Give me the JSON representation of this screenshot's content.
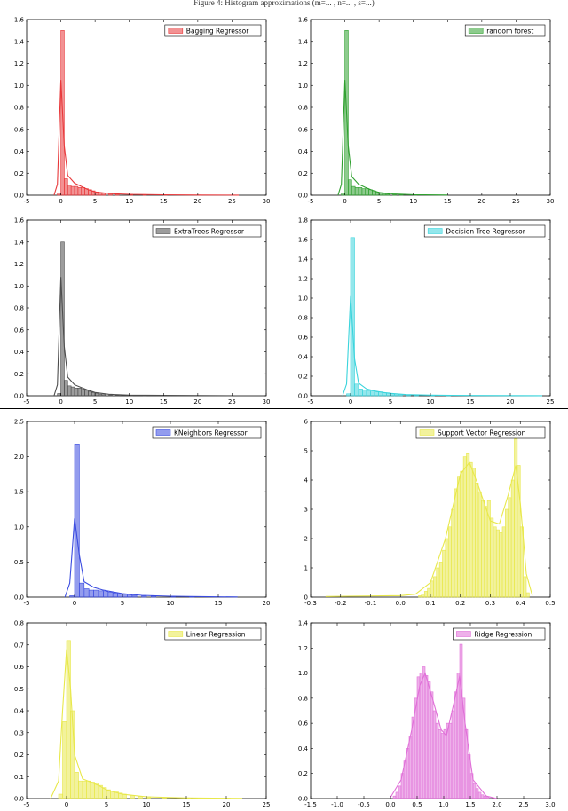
{
  "header": {
    "text": "Figure 4: Histogram approximations (m=... , n=... , s=...)"
  },
  "colors": {
    "red": "#e8383a",
    "green": "#2fa02f",
    "gray": "#4d4d4d",
    "cyan": "#3ad4dc",
    "blue": "#3a4be0",
    "yellow": "#e8e84a",
    "pink": "#e070d8"
  },
  "chart_data": [
    {
      "type": "bar",
      "legend": "Bagging Regressor",
      "color": "#e8383a",
      "xlim": [
        -5,
        30
      ],
      "ylim": [
        0,
        1.6
      ],
      "xticks": [
        -5,
        0,
        5,
        10,
        15,
        20,
        25,
        30
      ],
      "yticks": [
        0.0,
        0.2,
        0.4,
        0.6,
        0.8,
        1.0,
        1.2,
        1.4,
        1.6
      ],
      "bin_width": 0.5,
      "x": [
        -0.5,
        0.0,
        0.5,
        1.0,
        1.5,
        2.0,
        2.5,
        3.0,
        3.5,
        4.0,
        4.5,
        5.0,
        5.5,
        6.0,
        7.0,
        8.0,
        10.0,
        12.0,
        15.0,
        20.0,
        25.0
      ],
      "values": [
        0.02,
        1.5,
        0.15,
        0.09,
        0.08,
        0.08,
        0.07,
        0.07,
        0.06,
        0.05,
        0.04,
        0.03,
        0.02,
        0.02,
        0.015,
        0.01,
        0.008,
        0.006,
        0.004,
        0.002,
        0.002
      ],
      "kde": [
        [
          -1,
          0
        ],
        [
          -0.5,
          0.1
        ],
        [
          0,
          1.05
        ],
        [
          0.5,
          0.45
        ],
        [
          1,
          0.18
        ],
        [
          2,
          0.11
        ],
        [
          3,
          0.08
        ],
        [
          4,
          0.05
        ],
        [
          5,
          0.03
        ],
        [
          7,
          0.015
        ],
        [
          10,
          0.008
        ],
        [
          15,
          0.004
        ],
        [
          20,
          0.002
        ],
        [
          26,
          0.001
        ]
      ]
    },
    {
      "type": "bar",
      "legend": "random forest",
      "color": "#2fa02f",
      "xlim": [
        -5,
        30
      ],
      "ylim": [
        0,
        1.6
      ],
      "xticks": [
        -5,
        0,
        5,
        10,
        15,
        20,
        25,
        30
      ],
      "yticks": [
        0.0,
        0.2,
        0.4,
        0.6,
        0.8,
        1.0,
        1.2,
        1.4,
        1.6
      ],
      "bin_width": 0.5,
      "x": [
        -0.5,
        0.0,
        0.5,
        1.0,
        1.5,
        2.0,
        2.5,
        3.0,
        3.5,
        4.0,
        4.5,
        5.0,
        5.5,
        6.0,
        7.0,
        8.0,
        10.0
      ],
      "values": [
        0.02,
        1.5,
        0.14,
        0.08,
        0.07,
        0.07,
        0.06,
        0.06,
        0.05,
        0.04,
        0.03,
        0.02,
        0.015,
        0.01,
        0.008,
        0.006,
        0.004
      ],
      "kde": [
        [
          -1,
          0
        ],
        [
          -0.5,
          0.1
        ],
        [
          0,
          1.05
        ],
        [
          0.5,
          0.45
        ],
        [
          1,
          0.17
        ],
        [
          2,
          0.1
        ],
        [
          3,
          0.07
        ],
        [
          4,
          0.045
        ],
        [
          5,
          0.025
        ],
        [
          7,
          0.012
        ],
        [
          10,
          0.005
        ],
        [
          15,
          0.002
        ]
      ]
    },
    {
      "type": "bar",
      "legend": "ExtraTrees Regressor",
      "color": "#4d4d4d",
      "xlim": [
        -5,
        30
      ],
      "ylim": [
        0,
        1.6
      ],
      "xticks": [
        -5,
        0,
        5,
        10,
        15,
        20,
        25,
        30
      ],
      "yticks": [
        0.0,
        0.2,
        0.4,
        0.6,
        0.8,
        1.0,
        1.2,
        1.4,
        1.6
      ],
      "bin_width": 0.5,
      "x": [
        -0.5,
        0.0,
        0.5,
        1.0,
        1.5,
        2.0,
        2.5,
        3.0,
        3.5,
        4.0,
        4.5,
        5.0,
        5.5,
        6.0,
        7.0,
        8.0,
        10.0,
        12.0
      ],
      "values": [
        0.02,
        1.4,
        0.14,
        0.09,
        0.08,
        0.07,
        0.07,
        0.06,
        0.05,
        0.04,
        0.03,
        0.02,
        0.015,
        0.01,
        0.008,
        0.006,
        0.004,
        0.003
      ],
      "kde": [
        [
          -1,
          0
        ],
        [
          -0.5,
          0.1
        ],
        [
          0,
          1.08
        ],
        [
          0.5,
          0.45
        ],
        [
          1,
          0.17
        ],
        [
          2,
          0.1
        ],
        [
          3,
          0.075
        ],
        [
          4,
          0.05
        ],
        [
          5,
          0.03
        ],
        [
          7,
          0.014
        ],
        [
          10,
          0.006
        ],
        [
          15,
          0.003
        ],
        [
          25,
          0.001
        ]
      ]
    },
    {
      "type": "bar",
      "legend": "Decision Tree Regressor",
      "color": "#3ad4dc",
      "xlim": [
        -5,
        25
      ],
      "ylim": [
        0,
        1.8
      ],
      "xticks": [
        -5,
        0,
        5,
        10,
        15,
        20,
        25
      ],
      "yticks": [
        0.0,
        0.2,
        0.4,
        0.6,
        0.8,
        1.0,
        1.2,
        1.4,
        1.6,
        1.8
      ],
      "bin_width": 0.5,
      "x": [
        -0.5,
        0.0,
        0.5,
        1.0,
        1.5,
        2.0,
        2.5,
        3.0,
        3.5,
        4.0,
        4.5,
        5.0,
        5.5,
        6.0,
        7.0,
        8.0,
        10.0,
        12.0
      ],
      "values": [
        0.02,
        1.62,
        0.12,
        0.07,
        0.06,
        0.05,
        0.05,
        0.04,
        0.04,
        0.03,
        0.03,
        0.02,
        0.02,
        0.015,
        0.01,
        0.008,
        0.005,
        0.003
      ],
      "kde": [
        [
          -1,
          0
        ],
        [
          -0.5,
          0.12
        ],
        [
          0,
          1.02
        ],
        [
          0.5,
          0.38
        ],
        [
          1,
          0.13
        ],
        [
          2,
          0.07
        ],
        [
          3,
          0.05
        ],
        [
          4,
          0.035
        ],
        [
          5,
          0.025
        ],
        [
          7,
          0.012
        ],
        [
          10,
          0.006
        ],
        [
          15,
          0.003
        ],
        [
          24,
          0.001
        ]
      ]
    },
    {
      "type": "bar",
      "legend": "KNeighbors Regressor",
      "color": "#3a4be0",
      "xlim": [
        -5,
        20
      ],
      "ylim": [
        0,
        2.5
      ],
      "xticks": [
        -5,
        0,
        5,
        10,
        15,
        20
      ],
      "yticks": [
        0.0,
        0.5,
        1.0,
        1.5,
        2.0,
        2.5
      ],
      "bin_width": 0.5,
      "x": [
        -0.5,
        0.0,
        0.5,
        1.0,
        1.5,
        2.0,
        2.5,
        3.0,
        3.5,
        4.0,
        4.5,
        5.0,
        5.5,
        6.0,
        7.0,
        8.0,
        10.0,
        12.0
      ],
      "values": [
        0.02,
        2.18,
        0.2,
        0.12,
        0.1,
        0.1,
        0.09,
        0.08,
        0.07,
        0.06,
        0.05,
        0.04,
        0.03,
        0.025,
        0.02,
        0.015,
        0.01,
        0.005
      ],
      "kde": [
        [
          -1,
          0
        ],
        [
          -0.5,
          0.2
        ],
        [
          0,
          1.12
        ],
        [
          0.5,
          0.6
        ],
        [
          1,
          0.22
        ],
        [
          2,
          0.14
        ],
        [
          3,
          0.1
        ],
        [
          4,
          0.075
        ],
        [
          5,
          0.05
        ],
        [
          7,
          0.025
        ],
        [
          10,
          0.012
        ],
        [
          15,
          0.004
        ],
        [
          17,
          0.002
        ]
      ]
    },
    {
      "type": "bar",
      "legend": "Support Vector Regression",
      "color": "#e8e84a",
      "xlim": [
        -0.3,
        0.5
      ],
      "ylim": [
        0,
        6
      ],
      "xticks": [
        -0.3,
        -0.2,
        -0.1,
        0.0,
        0.1,
        0.2,
        0.3,
        0.4,
        0.5
      ],
      "yticks": [
        0,
        1,
        2,
        3,
        4,
        5,
        6
      ],
      "bin_width": 0.01,
      "x": [
        0.06,
        0.07,
        0.08,
        0.09,
        0.1,
        0.11,
        0.12,
        0.13,
        0.14,
        0.15,
        0.16,
        0.17,
        0.18,
        0.19,
        0.2,
        0.21,
        0.22,
        0.23,
        0.24,
        0.25,
        0.26,
        0.27,
        0.28,
        0.29,
        0.3,
        0.31,
        0.32,
        0.33,
        0.34,
        0.35,
        0.36,
        0.37,
        0.38,
        0.39,
        0.4,
        0.41,
        0.42
      ],
      "values": [
        0.05,
        0.1,
        0.2,
        0.3,
        0.55,
        0.7,
        1.0,
        1.2,
        1.6,
        2.0,
        2.4,
        3.0,
        3.7,
        4.1,
        4.3,
        4.8,
        4.9,
        4.6,
        4.4,
        3.9,
        3.6,
        3.3,
        3.1,
        3.3,
        2.7,
        2.4,
        2.3,
        2.2,
        2.4,
        3.0,
        3.4,
        4.0,
        5.4,
        4.5,
        2.4,
        0.7,
        0.15
      ],
      "kde": [
        [
          -0.25,
          0.02
        ],
        [
          0.0,
          0.05
        ],
        [
          0.05,
          0.1
        ],
        [
          0.1,
          0.5
        ],
        [
          0.15,
          2.0
        ],
        [
          0.2,
          4.2
        ],
        [
          0.23,
          4.6
        ],
        [
          0.26,
          3.8
        ],
        [
          0.3,
          2.6
        ],
        [
          0.33,
          2.5
        ],
        [
          0.36,
          3.5
        ],
        [
          0.385,
          4.5
        ],
        [
          0.4,
          3.2
        ],
        [
          0.42,
          0.8
        ],
        [
          0.44,
          0.05
        ]
      ]
    },
    {
      "type": "bar",
      "legend": "Linear Regression",
      "color": "#e8e84a",
      "xlim": [
        -5,
        25
      ],
      "ylim": [
        0,
        0.8
      ],
      "xticks": [
        -5,
        0,
        5,
        10,
        15,
        20,
        25
      ],
      "yticks": [
        0.0,
        0.1,
        0.2,
        0.3,
        0.4,
        0.5,
        0.6,
        0.7,
        0.8
      ],
      "bin_width": 0.5,
      "x": [
        -1.0,
        -0.5,
        0.0,
        0.5,
        1.0,
        1.5,
        2.0,
        2.5,
        3.0,
        3.5,
        4.0,
        4.5,
        5.0,
        5.5,
        6.0,
        6.5,
        7.0,
        8.0,
        9.0,
        10.0,
        12.0,
        15.0,
        20.0
      ],
      "values": [
        0.02,
        0.35,
        0.72,
        0.4,
        0.12,
        0.08,
        0.08,
        0.08,
        0.075,
        0.07,
        0.06,
        0.05,
        0.04,
        0.035,
        0.03,
        0.025,
        0.02,
        0.015,
        0.01,
        0.008,
        0.005,
        0.003,
        0.002
      ],
      "kde": [
        [
          -2,
          0
        ],
        [
          -1,
          0.08
        ],
        [
          -0.5,
          0.4
        ],
        [
          0,
          0.68
        ],
        [
          0.5,
          0.5
        ],
        [
          1,
          0.2
        ],
        [
          2,
          0.09
        ],
        [
          3,
          0.075
        ],
        [
          4,
          0.06
        ],
        [
          5,
          0.04
        ],
        [
          7,
          0.02
        ],
        [
          10,
          0.008
        ],
        [
          15,
          0.003
        ],
        [
          22,
          0.001
        ]
      ]
    },
    {
      "type": "bar",
      "legend": "Ridge Regression",
      "color": "#e070d8",
      "xlim": [
        -1.5,
        3.0
      ],
      "ylim": [
        0,
        1.4
      ],
      "xticks": [
        -1.5,
        -1.0,
        -0.5,
        0.0,
        0.5,
        1.0,
        1.5,
        2.0,
        2.5,
        3.0
      ],
      "yticks": [
        0.0,
        0.2,
        0.4,
        0.6,
        0.8,
        1.0,
        1.2,
        1.4
      ],
      "bin_width": 0.05,
      "x": [
        0.05,
        0.1,
        0.15,
        0.2,
        0.25,
        0.3,
        0.35,
        0.4,
        0.45,
        0.5,
        0.55,
        0.6,
        0.65,
        0.7,
        0.75,
        0.8,
        0.85,
        0.9,
        0.95,
        1.0,
        1.05,
        1.1,
        1.15,
        1.2,
        1.25,
        1.3,
        1.35,
        1.4,
        1.45,
        1.5,
        1.55,
        1.6,
        1.65,
        1.7,
        1.75,
        1.8
      ],
      "values": [
        0.02,
        0.05,
        0.1,
        0.2,
        0.3,
        0.4,
        0.5,
        0.65,
        0.8,
        0.97,
        1.0,
        1.05,
        0.98,
        0.93,
        0.85,
        0.7,
        0.6,
        0.55,
        0.52,
        0.55,
        0.6,
        0.6,
        0.7,
        0.85,
        1.0,
        1.23,
        0.8,
        0.55,
        0.35,
        0.2,
        0.12,
        0.08,
        0.05,
        0.03,
        0.02,
        0.01
      ],
      "kde": [
        [
          0.0,
          0.01
        ],
        [
          0.2,
          0.15
        ],
        [
          0.4,
          0.55
        ],
        [
          0.55,
          0.9
        ],
        [
          0.65,
          1.0
        ],
        [
          0.8,
          0.78
        ],
        [
          0.95,
          0.55
        ],
        [
          1.05,
          0.5
        ],
        [
          1.2,
          0.78
        ],
        [
          1.3,
          0.98
        ],
        [
          1.4,
          0.6
        ],
        [
          1.55,
          0.15
        ],
        [
          1.8,
          0.02
        ],
        [
          2.0,
          0.0
        ]
      ]
    }
  ]
}
